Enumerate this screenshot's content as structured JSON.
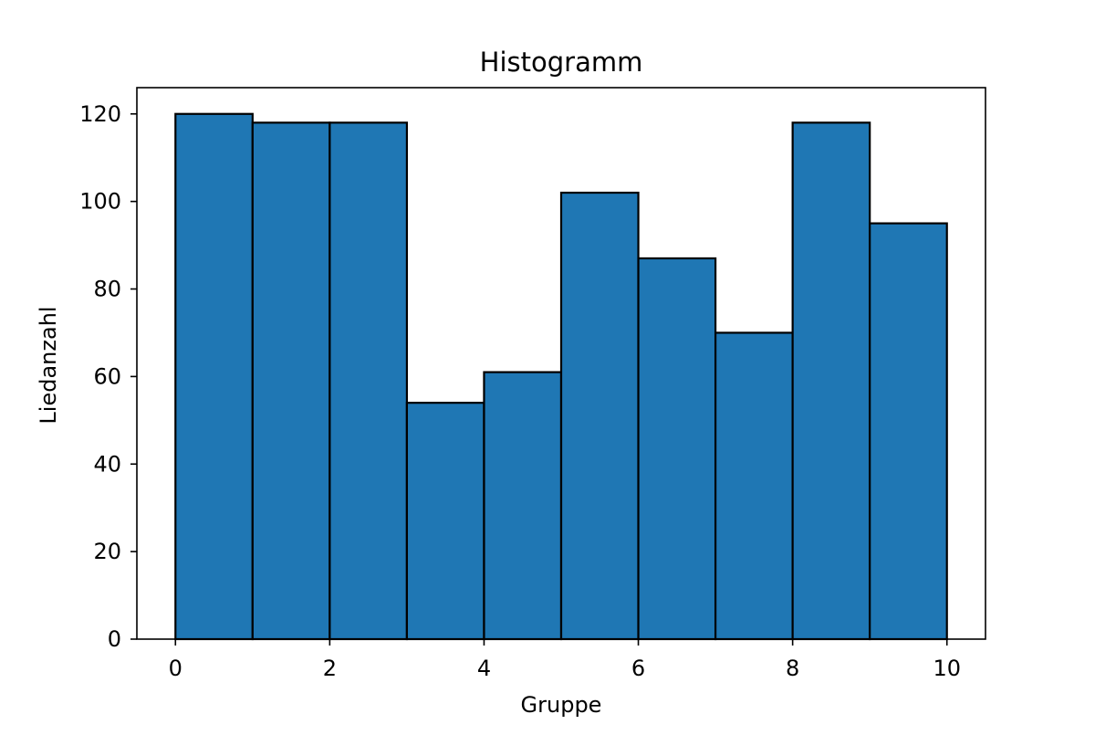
{
  "chart_data": {
    "type": "bar",
    "title": "Histogramm",
    "xlabel": "Gruppe",
    "ylabel": "Liedanzahl",
    "bin_edges": [
      0,
      1,
      2,
      3,
      4,
      5,
      6,
      7,
      8,
      9,
      10
    ],
    "values": [
      120,
      118,
      118,
      54,
      61,
      102,
      87,
      70,
      118,
      95
    ],
    "xlim": [
      -0.5,
      10.5
    ],
    "ylim": [
      0,
      126
    ],
    "xticks": [
      0,
      2,
      4,
      6,
      8,
      10
    ],
    "yticks": [
      0,
      20,
      40,
      60,
      80,
      100,
      120
    ],
    "grid": false,
    "colors": {
      "bar_fill": "#1f77b4",
      "bar_edge": "#000000"
    }
  }
}
